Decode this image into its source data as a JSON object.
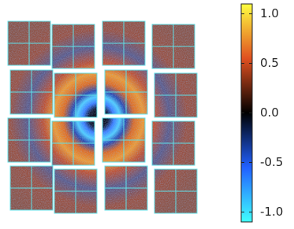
{
  "chart_data": {
    "type": "image",
    "colormap": [
      "#40ffff",
      "#2060ff",
      "#000000",
      "#e05020",
      "#ffff40"
    ],
    "clim": [
      -1.1,
      1.1
    ],
    "cticks": [
      {
        "value": -1.0,
        "label": "-1.0"
      },
      -0.5,
      {
        "value": 0.0,
        "label": "0.0"
      },
      0.5,
      {
        "value": 1.0,
        "label": "1.0"
      }
    ]
  }
}
